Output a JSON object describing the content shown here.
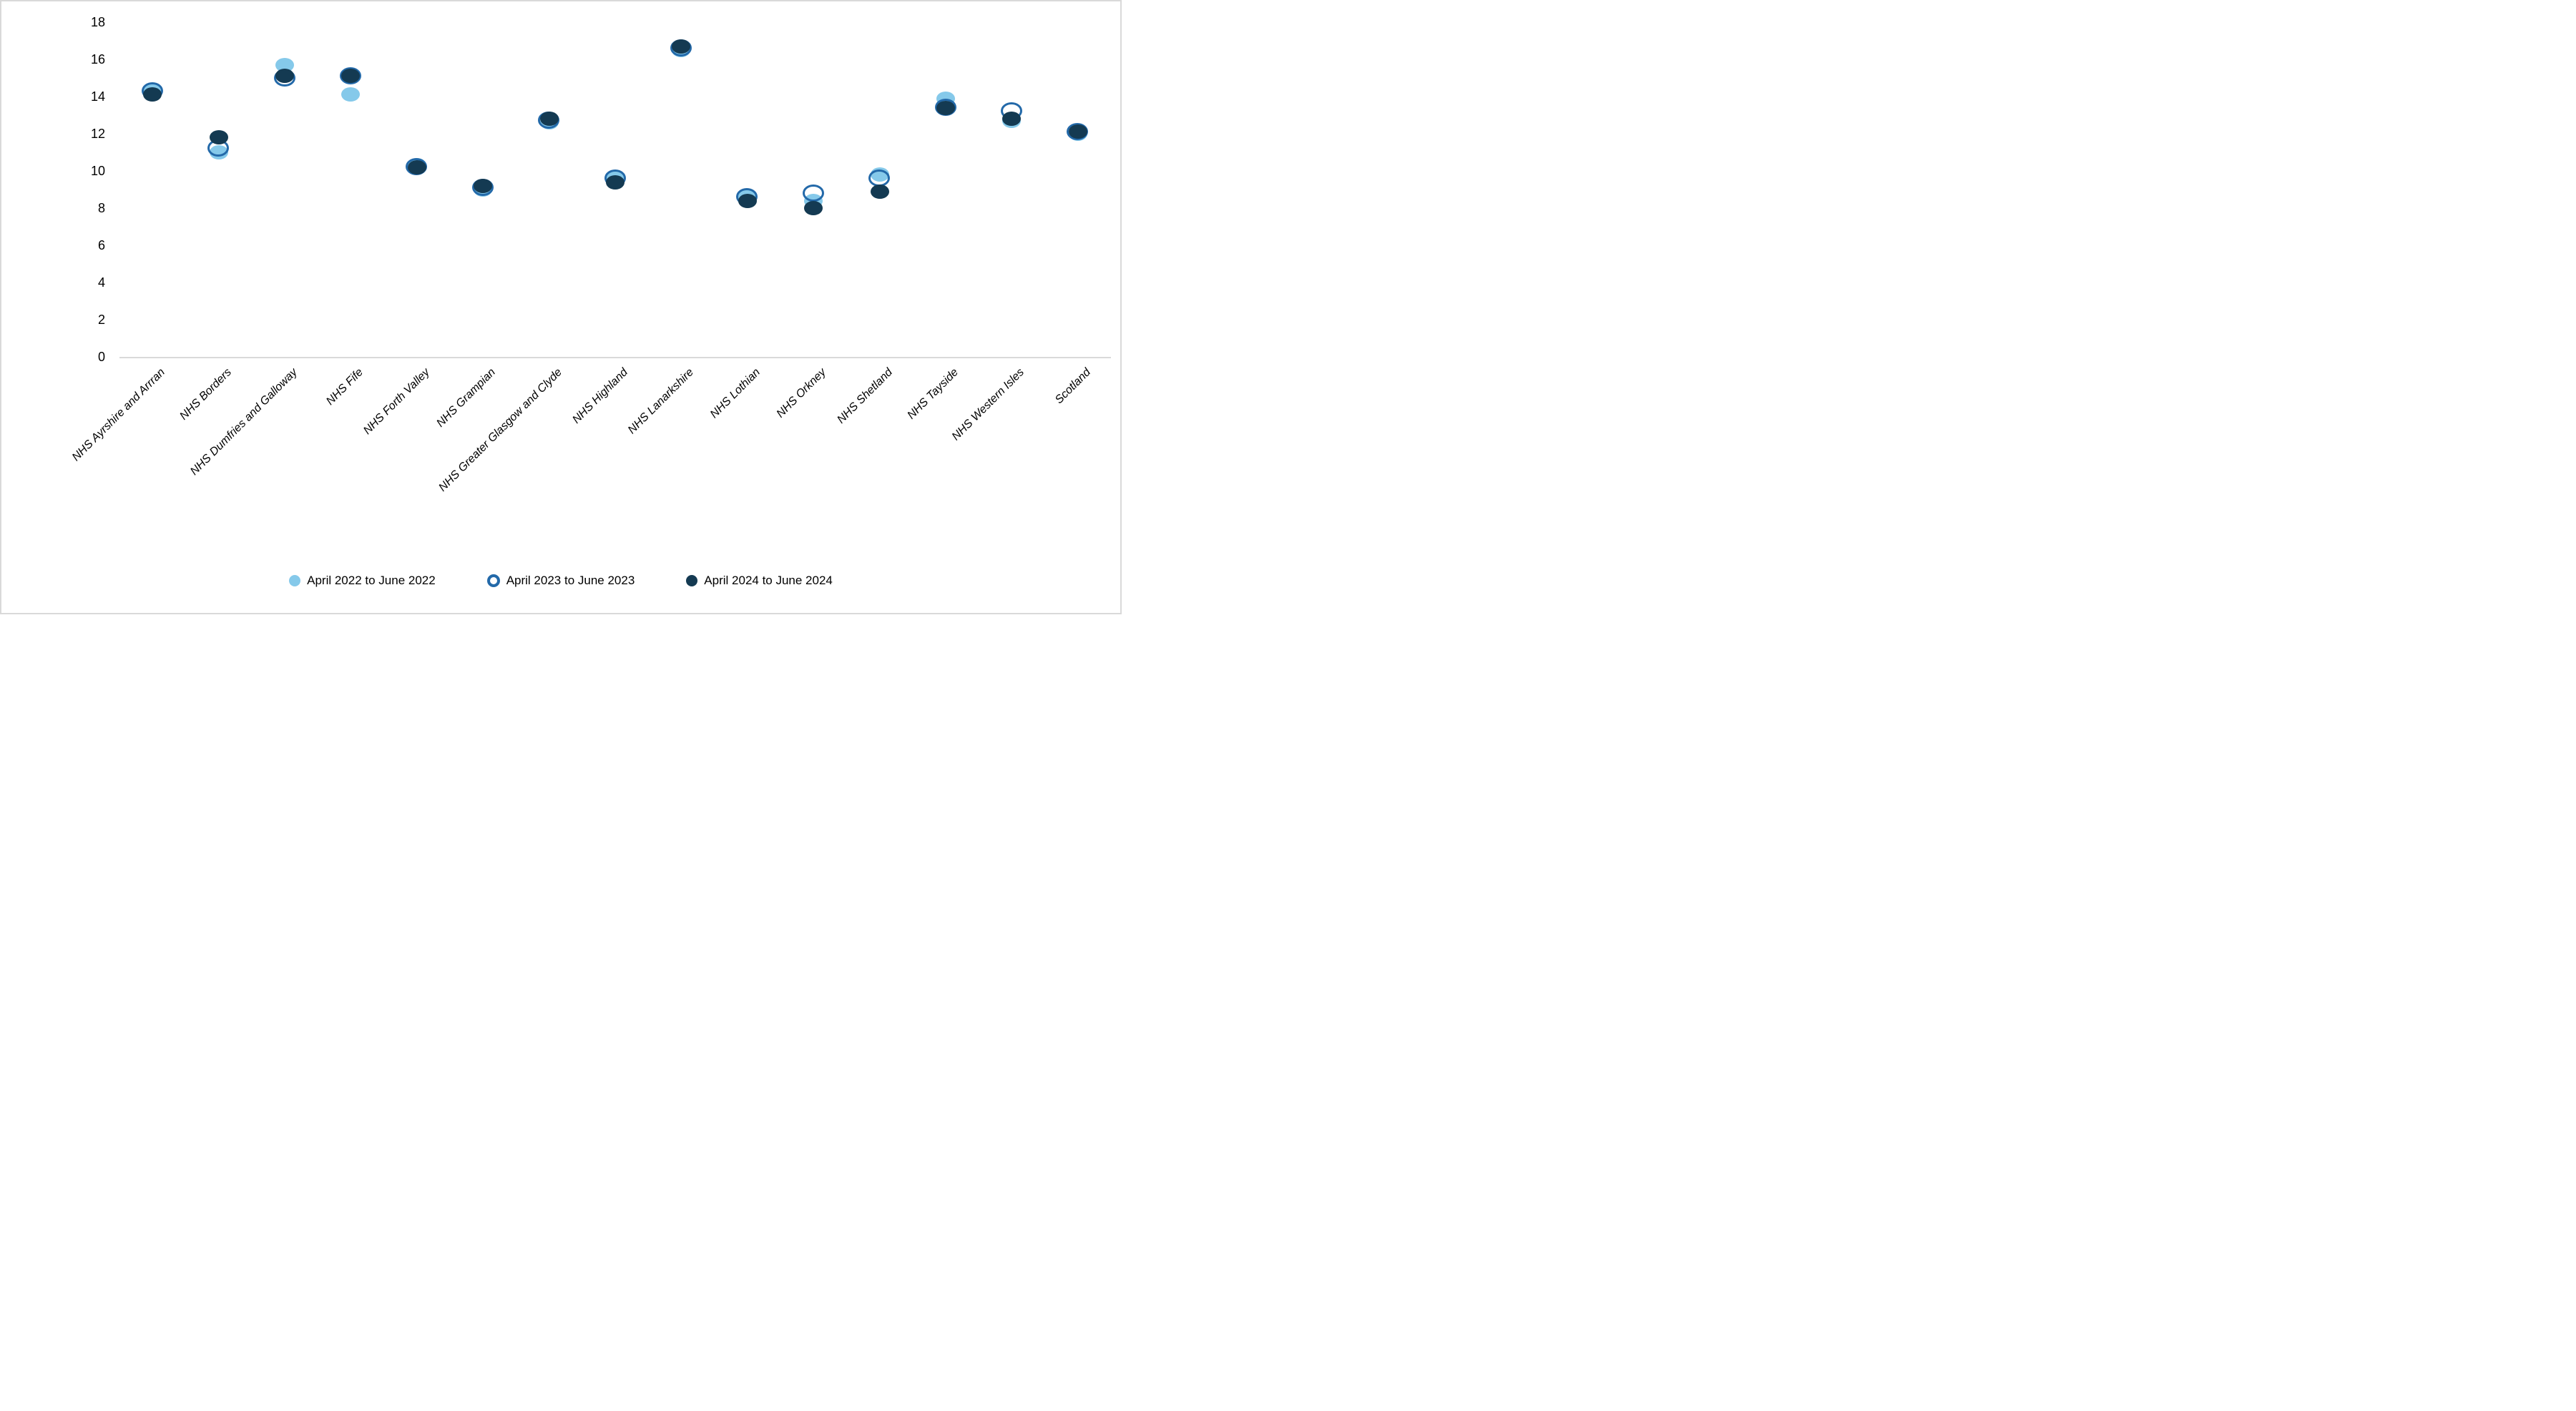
{
  "chart_data": {
    "type": "scatter",
    "title": "",
    "categories": [
      "NHS Ayrshire and Arrran",
      "NHS Borders",
      "NHS Dumfries and Galloway",
      "NHS Fife",
      "NHS Forth Valley",
      "NHS Grampian",
      "NHS Greater Glasgow and Clyde",
      "NHS Highland",
      "NHS Lanarkshire",
      "NHS Lothian",
      "NHS Orkney",
      "NHS Shetland",
      "NHS Tayside",
      "NHS Western Isles",
      "Scotland"
    ],
    "series": [
      {
        "name": "April 2022 to June 2022",
        "marker": "filled-circle",
        "color": "#85C9EA",
        "values": [
          14.3,
          11.0,
          15.7,
          14.1,
          10.3,
          9.0,
          12.6,
          9.6,
          16.5,
          8.6,
          8.4,
          9.8,
          13.9,
          12.7,
          12.0
        ]
      },
      {
        "name": "April 2023 to June 2023",
        "marker": "hollow-circle",
        "color": "#2369A9",
        "values": [
          14.3,
          11.2,
          15.0,
          15.1,
          10.2,
          9.1,
          12.7,
          9.6,
          16.6,
          8.6,
          8.8,
          9.6,
          13.4,
          13.2,
          12.1
        ]
      },
      {
        "name": "April 2024 to June 2024",
        "marker": "filled-circle",
        "color": "#143A52",
        "values": [
          14.1,
          11.8,
          15.1,
          15.1,
          10.2,
          9.2,
          12.8,
          9.4,
          16.7,
          8.4,
          8.0,
          8.9,
          13.4,
          12.8,
          12.1
        ]
      }
    ],
    "y_axis": {
      "min": 0,
      "max": 18,
      "tick_step": 2,
      "tick_labels": [
        "0",
        "2",
        "4",
        "6",
        "8",
        "10",
        "12",
        "14",
        "16",
        "18"
      ]
    },
    "x_axis": {
      "label_rotation_deg": 45,
      "label_style": "italic"
    },
    "grid": false,
    "legend_position": "bottom",
    "axis_line_color": "#D9D9D9",
    "text_color": "#000000",
    "background": "#FFFFFF"
  }
}
